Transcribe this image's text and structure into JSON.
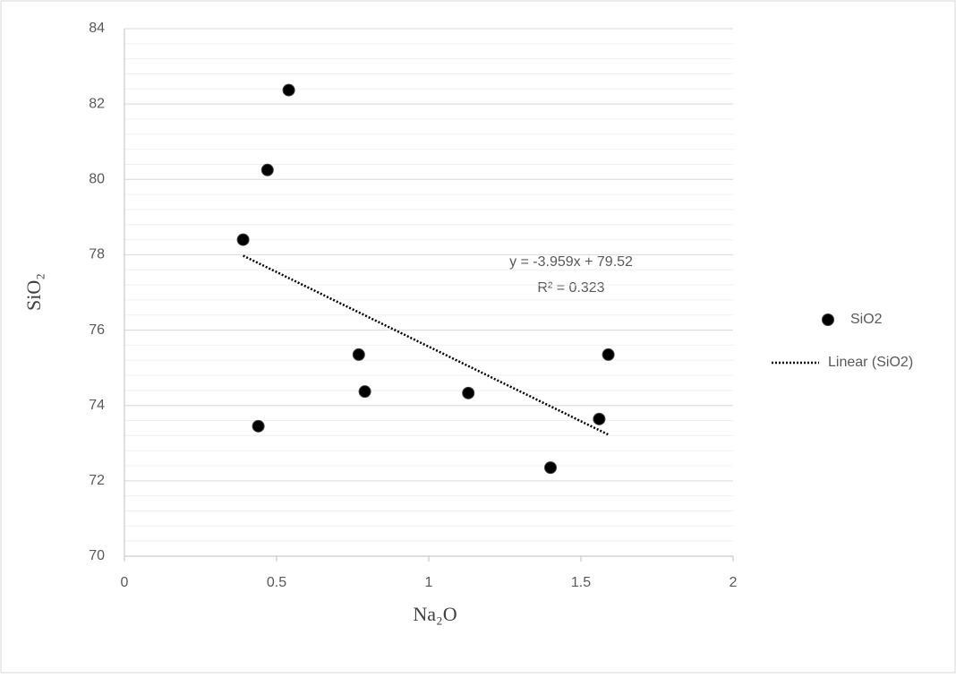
{
  "chart_data": {
    "type": "scatter",
    "x_label": "Na₂O",
    "y_label": "SiO₂",
    "x": [
      0.39,
      0.44,
      0.47,
      0.54,
      0.77,
      0.79,
      1.13,
      1.4,
      1.56,
      1.59
    ],
    "series": [
      {
        "name": "SiO2",
        "color": "#000000",
        "values": [
          78.4,
          73.45,
          80.25,
          82.37,
          75.35,
          74.37,
          74.33,
          72.35,
          73.64,
          75.35
        ]
      }
    ],
    "trendline": {
      "name": "Linear (SiO2)",
      "color": "#000000",
      "equation": "y = -3.959x + 79.52",
      "slope": -3.959,
      "intercept": 79.52,
      "r_squared_label": "R² = 0.323",
      "r_squared": 0.323
    },
    "xlim": [
      0,
      2
    ],
    "xticks": [
      0,
      0.5,
      1,
      1.5,
      2
    ],
    "ylim": [
      70,
      84
    ],
    "yticks": [
      70,
      72,
      74,
      76,
      78,
      80,
      82,
      84
    ],
    "grid": true,
    "minor_grid": true,
    "legend": "right"
  }
}
